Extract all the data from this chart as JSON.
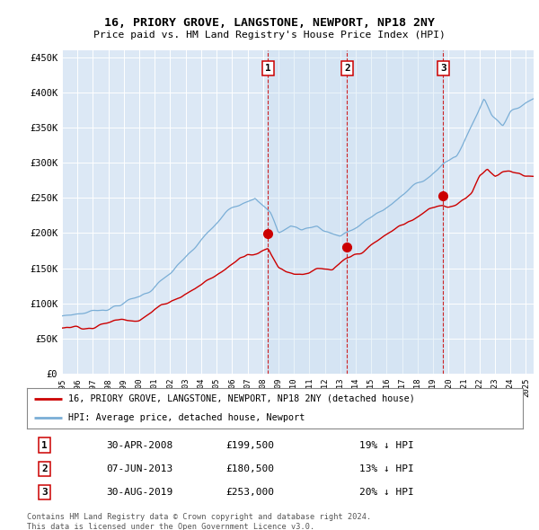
{
  "title1": "16, PRIORY GROVE, LANGSTONE, NEWPORT, NP18 2NY",
  "title2": "Price paid vs. HM Land Registry's House Price Index (HPI)",
  "plot_bg": "#dce8f5",
  "sale_year_nums": [
    2008.33,
    2013.44,
    2019.66
  ],
  "sale_prices": [
    199500,
    180500,
    253000
  ],
  "sale_labels": [
    "1",
    "2",
    "3"
  ],
  "legend_line1": "16, PRIORY GROVE, LANGSTONE, NEWPORT, NP18 2NY (detached house)",
  "legend_line2": "HPI: Average price, detached house, Newport",
  "table_entries": [
    [
      "1",
      "30-APR-2008",
      "£199,500",
      "19% ↓ HPI"
    ],
    [
      "2",
      "07-JUN-2013",
      "£180,500",
      "13% ↓ HPI"
    ],
    [
      "3",
      "30-AUG-2019",
      "£253,000",
      "20% ↓ HPI"
    ]
  ],
  "footer": "Contains HM Land Registry data © Crown copyright and database right 2024.\nThis data is licensed under the Open Government Licence v3.0.",
  "xmin": 1995.0,
  "xmax": 2025.5,
  "ymin": 0,
  "ymax": 460000,
  "hpi_color": "#7aaed6",
  "red_color": "#cc0000",
  "shade_color": "#d0e4f5"
}
